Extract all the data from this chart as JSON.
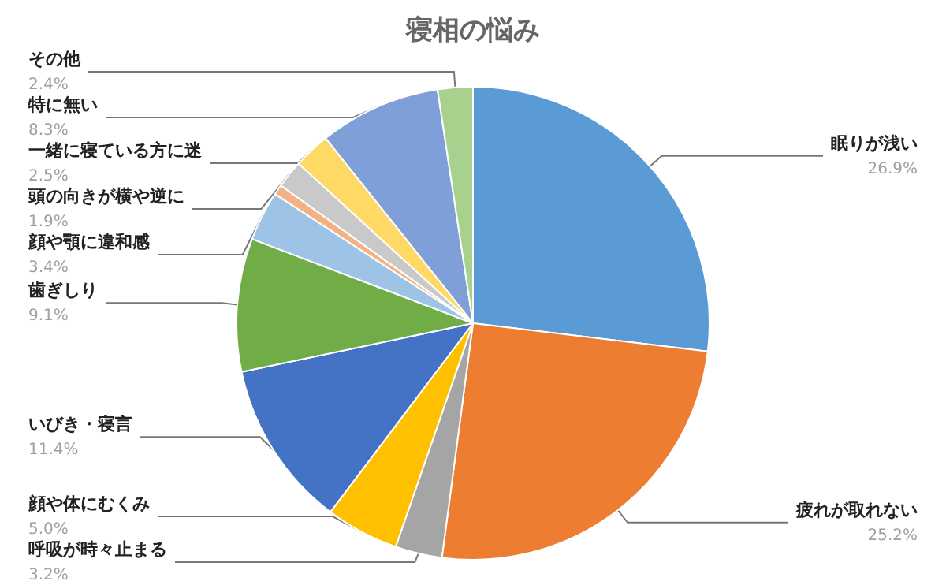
{
  "chart_data": {
    "type": "pie",
    "title": "寝相の悩み",
    "categories": [
      "眠りが浅い",
      "疲れが取れない",
      "呼吸が時々止まる",
      "顔や体にむくみ",
      "いびき・寝言",
      "歯ぎしり",
      "顔や顎に違和感",
      null,
      "頭の向きが横や逆に",
      "一緒に寝ている方に迷",
      "特に無い",
      "その他"
    ],
    "values": [
      26.9,
      25.2,
      3.2,
      5.0,
      11.4,
      9.1,
      3.4,
      0.7,
      1.9,
      2.5,
      8.3,
      2.4
    ],
    "value_labels": [
      "26.9%",
      "25.2%",
      "3.2%",
      "5.0%",
      "11.4%",
      "9.1%",
      "3.4%",
      null,
      "1.9%",
      "2.5%",
      "8.3%",
      "2.4%"
    ],
    "colors": [
      "#5b9bd5",
      "#ed7d31",
      "#a5a5a5",
      "#ffc000",
      "#4472c4",
      "#70ad47",
      "#9dc3e6",
      "#f4b183",
      "#c9c9c9",
      "#ffd966",
      "#7f9fd8",
      "#a9d18e"
    ],
    "legend": false
  }
}
